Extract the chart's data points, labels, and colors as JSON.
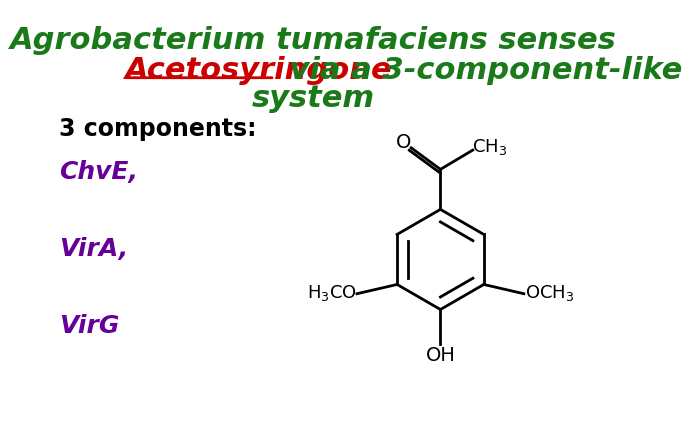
{
  "bg_color": "#ffffff",
  "title_line1": "Agrobacterium tumafaciens senses",
  "title_line2_red": "Acetosyringone",
  "title_line2_green": " via a 3-component-like",
  "title_line3": "system",
  "title_color": "#1a7a1a",
  "acetosyringone_color": "#cc0000",
  "components_label": "3 components:",
  "components_color": "#000000",
  "component1": "ChvE,",
  "component2": "VirA,",
  "component3": "VirG",
  "component_color": "#660099",
  "font_size_title": 22,
  "font_size_components": 18,
  "font_size_label": 17
}
